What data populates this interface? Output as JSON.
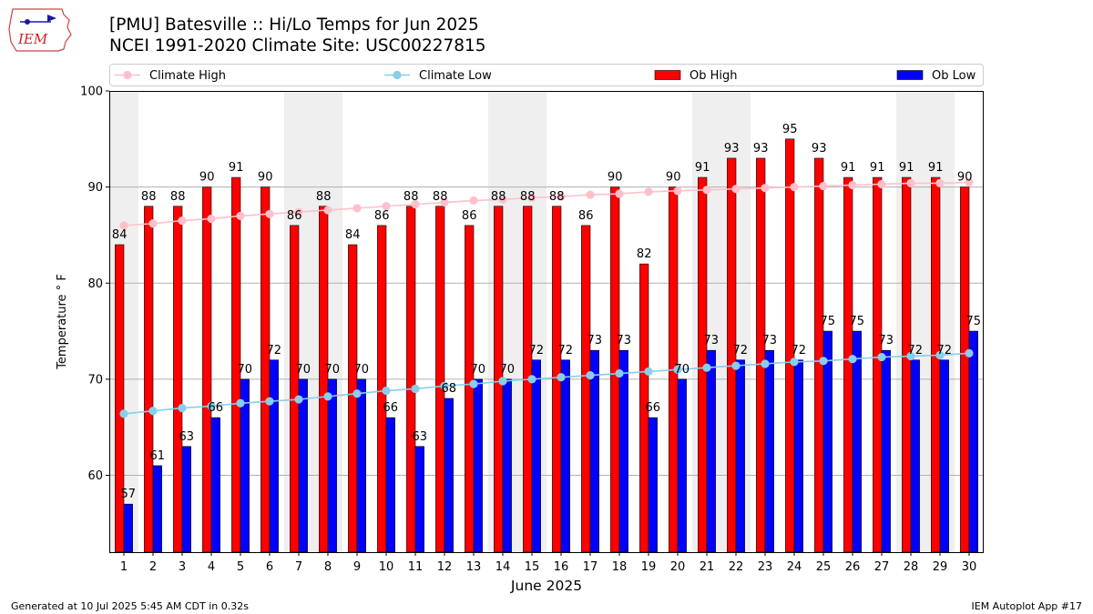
{
  "header": {
    "logo_text": "IEM",
    "title_line1": "[PMU] Batesville :: Hi/Lo Temps for Jun 2025",
    "title_line2": "NCEI 1991-2020 Climate Site: USC00227815"
  },
  "footer": {
    "generated": "Generated at 10 Jul 2025 5:45 AM CDT in 0.32s",
    "app": "IEM Autoplot App #17"
  },
  "colors": {
    "ob_high": "#ff0000",
    "ob_low": "#0000ff",
    "climate_high": "#ffc0cb",
    "climate_low": "#87ceeb",
    "weekend_shade": "#efefef",
    "grid": "#b0b0b0"
  },
  "chart_data": {
    "type": "bar",
    "xlabel": "June 2025",
    "ylabel": "Temperature ° F",
    "ylim": [
      52,
      100
    ],
    "yticks": [
      60,
      70,
      80,
      90,
      100
    ],
    "grid": true,
    "legend_position": "top",
    "categories": [
      "1",
      "2",
      "3",
      "4",
      "5",
      "6",
      "7",
      "8",
      "9",
      "10",
      "11",
      "12",
      "13",
      "14",
      "15",
      "16",
      "17",
      "18",
      "19",
      "20",
      "21",
      "22",
      "23",
      "24",
      "25",
      "26",
      "27",
      "28",
      "29",
      "30"
    ],
    "shaded_days": [
      1,
      7,
      8,
      14,
      15,
      21,
      22,
      28,
      29
    ],
    "series": [
      {
        "name": "Ob High",
        "kind": "bar",
        "values": [
          84,
          88,
          88,
          90,
          91,
          90,
          86,
          88,
          84,
          86,
          88,
          88,
          86,
          88,
          88,
          88,
          86,
          90,
          82,
          90,
          91,
          93,
          93,
          95,
          93,
          91,
          91,
          91,
          91,
          90
        ]
      },
      {
        "name": "Ob Low",
        "kind": "bar",
        "values": [
          57,
          61,
          63,
          66,
          70,
          72,
          70,
          70,
          70,
          66,
          63,
          68,
          70,
          70,
          72,
          72,
          73,
          73,
          66,
          70,
          73,
          72,
          73,
          72,
          75,
          75,
          73,
          72,
          72,
          75
        ]
      },
      {
        "name": "Climate High",
        "kind": "line",
        "values": [
          86.0,
          86.2,
          86.5,
          86.7,
          87.0,
          87.2,
          87.4,
          87.6,
          87.8,
          88.0,
          88.2,
          88.4,
          88.6,
          88.7,
          88.9,
          89.0,
          89.2,
          89.3,
          89.5,
          89.6,
          89.7,
          89.8,
          89.9,
          90.0,
          90.1,
          90.2,
          90.3,
          90.4,
          90.4,
          90.5
        ]
      },
      {
        "name": "Climate Low",
        "kind": "line",
        "values": [
          66.4,
          66.7,
          67.0,
          67.2,
          67.5,
          67.7,
          67.9,
          68.2,
          68.5,
          68.8,
          69.0,
          69.3,
          69.5,
          69.8,
          70.0,
          70.2,
          70.4,
          70.6,
          70.8,
          71.0,
          71.2,
          71.4,
          71.6,
          71.8,
          71.9,
          72.1,
          72.3,
          72.4,
          72.5,
          72.7
        ]
      }
    ]
  }
}
